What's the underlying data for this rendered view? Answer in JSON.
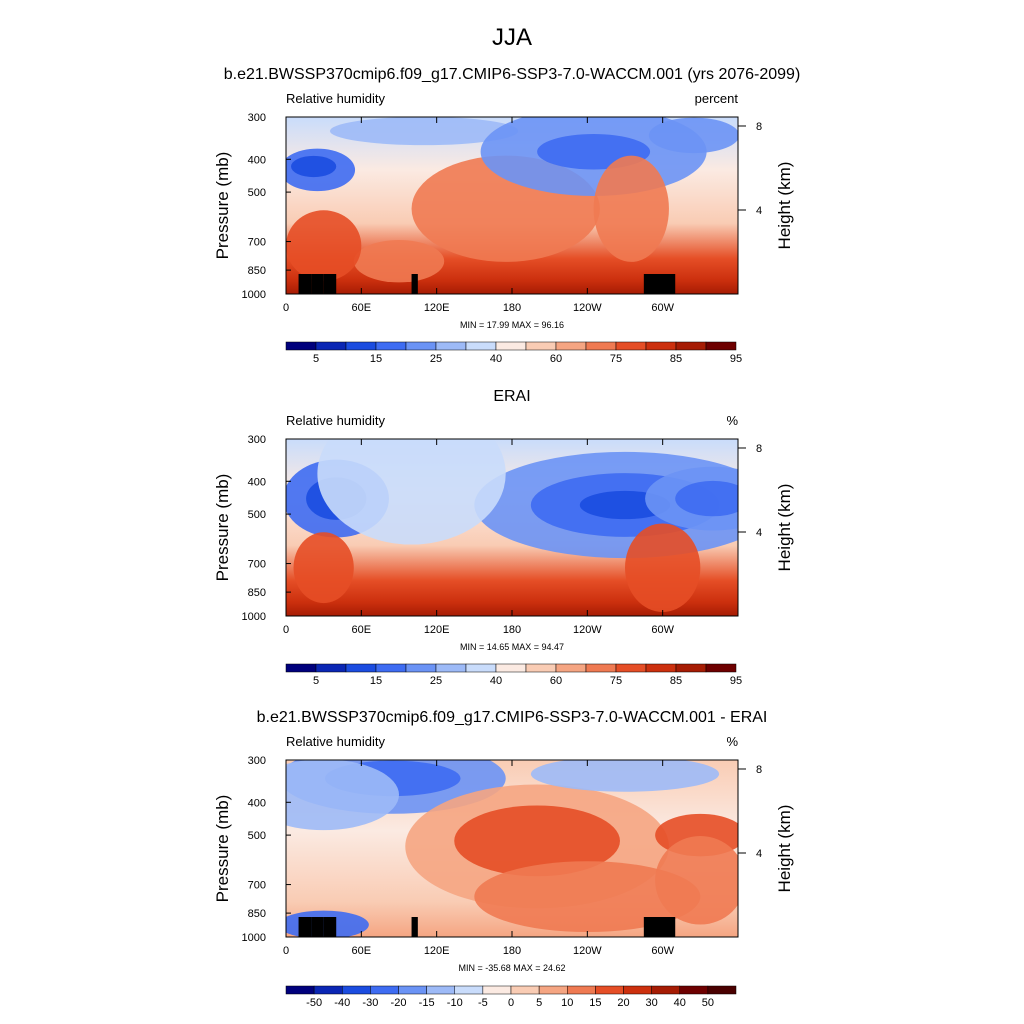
{
  "figure": {
    "season": "JJA"
  },
  "chart_data": [
    {
      "type": "heatmap",
      "title": "b.e21.BWSSP370cmip6.f09_g17.CMIP6-SSP3-7.0-WACCM.001 (yrs 2076-2099)",
      "left_label": "Relative humidity",
      "right_label": "percent",
      "ylabel": "Pressure (mb)",
      "ylabel_right": "Height (km)",
      "x_ticks": [
        "0",
        "60E",
        "120E",
        "180",
        "120W",
        "60W"
      ],
      "x_tick_lon": [
        0,
        60,
        120,
        180,
        240,
        300
      ],
      "xlim": [
        0,
        360
      ],
      "y_ticks": [
        "300",
        "400",
        "500",
        "700",
        "850",
        "1000"
      ],
      "y_tick_p": [
        300,
        400,
        500,
        700,
        850,
        1000
      ],
      "ylim": [
        1000,
        300
      ],
      "y_scale": "log",
      "height_ticks": [
        "8",
        "4"
      ],
      "height_tick_km": [
        8,
        4
      ],
      "stats": "MIN = 17.99 MAX = 96.16",
      "min": 17.99,
      "max": 96.16,
      "colorbar_labels": [
        "5",
        "15",
        "25",
        "40",
        "60",
        "75",
        "85",
        "95"
      ],
      "colormap": [
        "#00007c",
        "#0a26b4",
        "#1b4ce0",
        "#3e6cf2",
        "#6b93f5",
        "#9dbaf7",
        "#c9dcfb",
        "#fbeae2",
        "#f9ccb4",
        "#f5a582",
        "#ef7a52",
        "#e54e26",
        "#cc300e",
        "#a61c04",
        "#6e0000"
      ],
      "topography": [
        [
          10,
          20
        ],
        [
          20,
          30
        ],
        [
          30,
          40
        ],
        [
          100,
          105
        ],
        [
          285,
          310
        ]
      ]
    },
    {
      "type": "heatmap",
      "title": "ERAI",
      "left_label": "Relative humidity",
      "right_label": "%",
      "ylabel": "Pressure (mb)",
      "ylabel_right": "Height (km)",
      "x_ticks": [
        "0",
        "60E",
        "120E",
        "180",
        "120W",
        "60W"
      ],
      "x_tick_lon": [
        0,
        60,
        120,
        180,
        240,
        300
      ],
      "xlim": [
        0,
        360
      ],
      "y_ticks": [
        "300",
        "400",
        "500",
        "700",
        "850",
        "1000"
      ],
      "y_tick_p": [
        300,
        400,
        500,
        700,
        850,
        1000
      ],
      "ylim": [
        1000,
        300
      ],
      "y_scale": "log",
      "height_ticks": [
        "8",
        "4"
      ],
      "height_tick_km": [
        8,
        4
      ],
      "stats": "MIN = 14.65 MAX = 94.47",
      "min": 14.65,
      "max": 94.47,
      "colorbar_labels": [
        "5",
        "15",
        "25",
        "40",
        "60",
        "75",
        "85",
        "95"
      ],
      "colormap": [
        "#00007c",
        "#0a26b4",
        "#1b4ce0",
        "#3e6cf2",
        "#6b93f5",
        "#9dbaf7",
        "#c9dcfb",
        "#fbeae2",
        "#f9ccb4",
        "#f5a582",
        "#ef7a52",
        "#e54e26",
        "#cc300e",
        "#a61c04",
        "#6e0000"
      ],
      "topography": []
    },
    {
      "type": "heatmap",
      "title": "b.e21.BWSSP370cmip6.f09_g17.CMIP6-SSP3-7.0-WACCM.001 - ERAI",
      "left_label": "Relative humidity",
      "right_label": "%",
      "ylabel": "Pressure (mb)",
      "ylabel_right": "Height (km)",
      "x_ticks": [
        "0",
        "60E",
        "120E",
        "180",
        "120W",
        "60W"
      ],
      "x_tick_lon": [
        0,
        60,
        120,
        180,
        240,
        300
      ],
      "xlim": [
        0,
        360
      ],
      "y_ticks": [
        "300",
        "400",
        "500",
        "700",
        "850",
        "1000"
      ],
      "y_tick_p": [
        300,
        400,
        500,
        700,
        850,
        1000
      ],
      "ylim": [
        1000,
        300
      ],
      "y_scale": "log",
      "height_ticks": [
        "8",
        "4"
      ],
      "height_tick_km": [
        8,
        4
      ],
      "stats": "MIN = -35.68 MAX = 24.62",
      "min": -35.68,
      "max": 24.62,
      "colorbar_labels": [
        "-50",
        "-40",
        "-30",
        "-20",
        "-15",
        "-10",
        "-5",
        "0",
        "5",
        "10",
        "15",
        "20",
        "30",
        "40",
        "50"
      ],
      "colormap": [
        "#00007c",
        "#0a26b4",
        "#1b4ce0",
        "#3e6cf2",
        "#6b93f5",
        "#9dbaf7",
        "#c9dcfb",
        "#fbeae2",
        "#f9ccb4",
        "#f5a582",
        "#ef7a52",
        "#e54e26",
        "#cc300e",
        "#a61c04",
        "#6e0000",
        "#4a0000"
      ],
      "topography": [
        [
          10,
          20
        ],
        [
          20,
          30
        ],
        [
          30,
          40
        ],
        [
          100,
          105
        ],
        [
          285,
          310
        ]
      ]
    }
  ]
}
